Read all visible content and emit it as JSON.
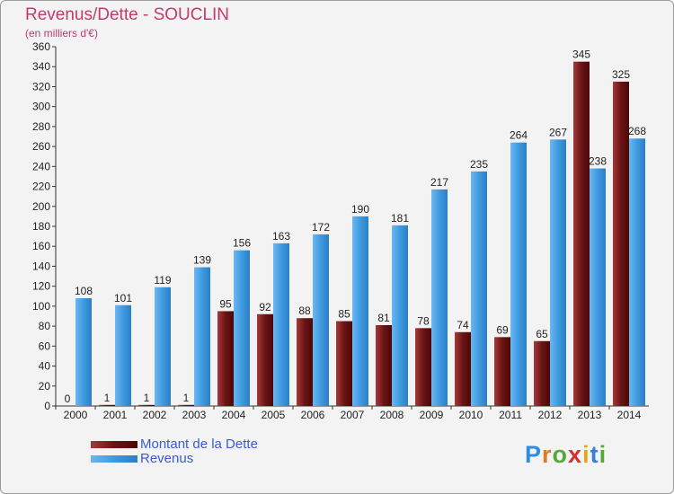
{
  "header": {
    "title": "Revenus/Dette - SOUCLIN",
    "subtitle": "(en milliers d'€)"
  },
  "legend": {
    "debt_label": "Montant de la Dette",
    "revenue_label": "Revenus"
  },
  "logo": {
    "letters": [
      "P",
      "r",
      "o",
      "x",
      "i",
      "t",
      "i"
    ],
    "colors": [
      "#2f8de0",
      "#e07a1f",
      "#57a83a",
      "#d6302e",
      "#e0a81f",
      "#3a7fd4",
      "#57a83a"
    ]
  },
  "colors": {
    "debt": "#7a1c1c",
    "revenue": "#4aa3e6",
    "title": "#c23a6e"
  },
  "chart_data": {
    "type": "bar",
    "title": "Revenus/Dette - SOUCLIN",
    "subtitle": "(en milliers d'€)",
    "categories": [
      "2000",
      "2001",
      "2002",
      "2003",
      "2004",
      "2005",
      "2006",
      "2007",
      "2008",
      "2009",
      "2010",
      "2011",
      "2012",
      "2013",
      "2014"
    ],
    "series": [
      {
        "name": "Montant de la Dette",
        "values": [
          0,
          1,
          1,
          1,
          95,
          92,
          88,
          85,
          81,
          78,
          74,
          69,
          65,
          345,
          325
        ]
      },
      {
        "name": "Revenus",
        "values": [
          108,
          101,
          119,
          139,
          156,
          163,
          172,
          190,
          181,
          217,
          235,
          264,
          267,
          238,
          268
        ]
      }
    ],
    "ylim": [
      0,
      360
    ],
    "yticks": [
      0,
      20,
      40,
      60,
      80,
      100,
      120,
      140,
      160,
      180,
      200,
      220,
      240,
      260,
      280,
      300,
      320,
      340,
      360
    ],
    "grid": false,
    "legend_position": "bottom-left"
  }
}
